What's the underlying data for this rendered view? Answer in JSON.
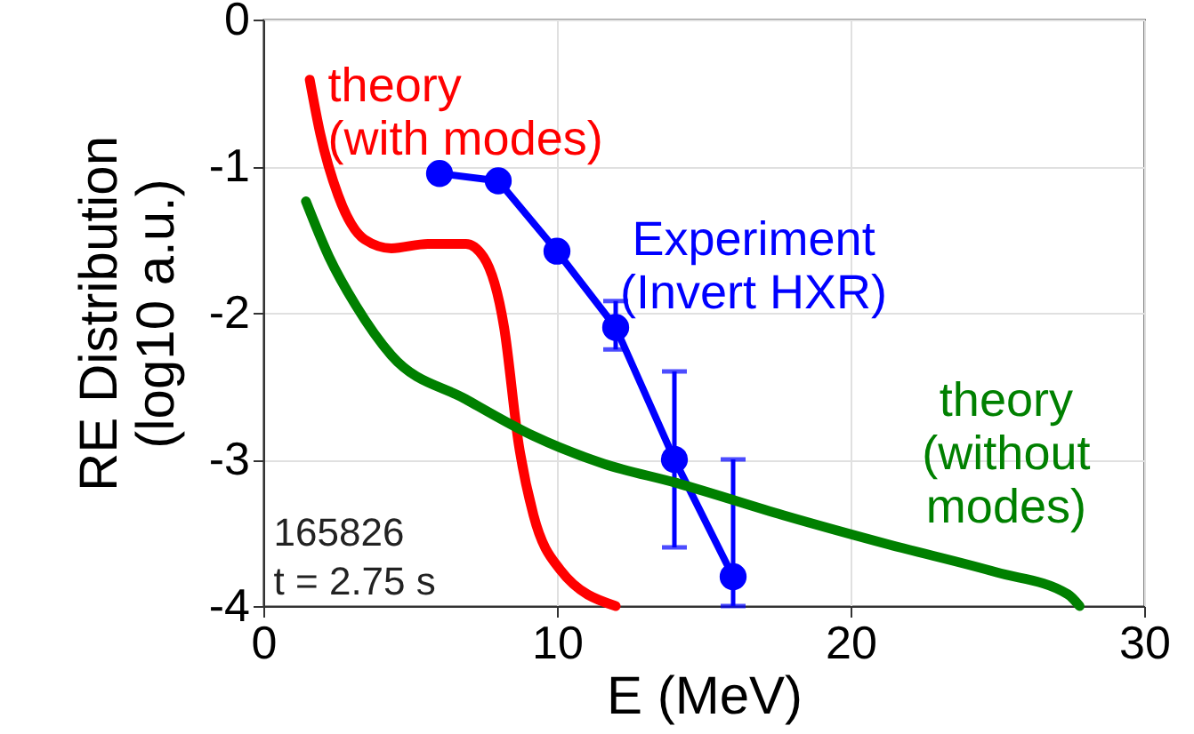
{
  "chart_data": {
    "type": "line",
    "xlabel": "E (MeV)",
    "ylabel": "RE Distribution\n(log10 a.u.)",
    "xlim": [
      0,
      30
    ],
    "xticks": [
      0,
      10,
      20,
      30
    ],
    "ylim": [
      -4,
      0
    ],
    "yticks": [
      0,
      {
        "value": -1,
        "label": "-1"
      },
      {
        "value": -2,
        "label": "-2"
      },
      {
        "value": -3,
        "label": "-3"
      },
      {
        "value": -4,
        "label": "-4"
      }
    ],
    "grid": true,
    "line_style": "solid",
    "series": [
      {
        "name": "theory\n(with modes)",
        "color": "#ff0000",
        "marker": "none",
        "x": [
          1.58,
          1.94,
          2.55,
          3.45,
          4.36,
          5.6,
          6.9,
          7.5,
          8.2,
          8.7,
          9.2,
          10.1,
          12
        ],
        "values": [
          -0.41,
          -0.78,
          -1.2,
          -1.5,
          -1.56,
          -1.53,
          -1.53,
          -1.62,
          -2.1,
          -2.9,
          -3.38,
          -3.75,
          -4
        ]
      },
      {
        "name": "Experiment\n(Invert HXR)",
        "color": "#0000ff",
        "marker": "circle",
        "x": [
          6,
          8,
          10,
          12,
          14,
          16
        ],
        "values": [
          -1.05,
          -1.1,
          -1.58,
          -2.1,
          -3.0,
          -3.8
        ],
        "errors": [
          null,
          null,
          null,
          [
            -2.25,
            -1.92
          ],
          [
            -3.6,
            -2.4
          ],
          [
            -4.0,
            -3.0
          ]
        ]
      },
      {
        "name": "theory\n(without\nmodes)",
        "color": "#008000",
        "marker": "none",
        "x": [
          1.45,
          2.24,
          3.15,
          4.36,
          6.9,
          9.2,
          11.6,
          14.06,
          17.7,
          21.3,
          24.97,
          27.4,
          27.8
        ],
        "values": [
          -1.24,
          -1.62,
          -1.95,
          -2.29,
          -2.59,
          -2.84,
          -3.03,
          -3.16,
          -3.38,
          -3.58,
          -3.77,
          -3.92,
          -4
        ]
      }
    ],
    "annotations": [
      "165826",
      "t = 2.75 s"
    ]
  }
}
